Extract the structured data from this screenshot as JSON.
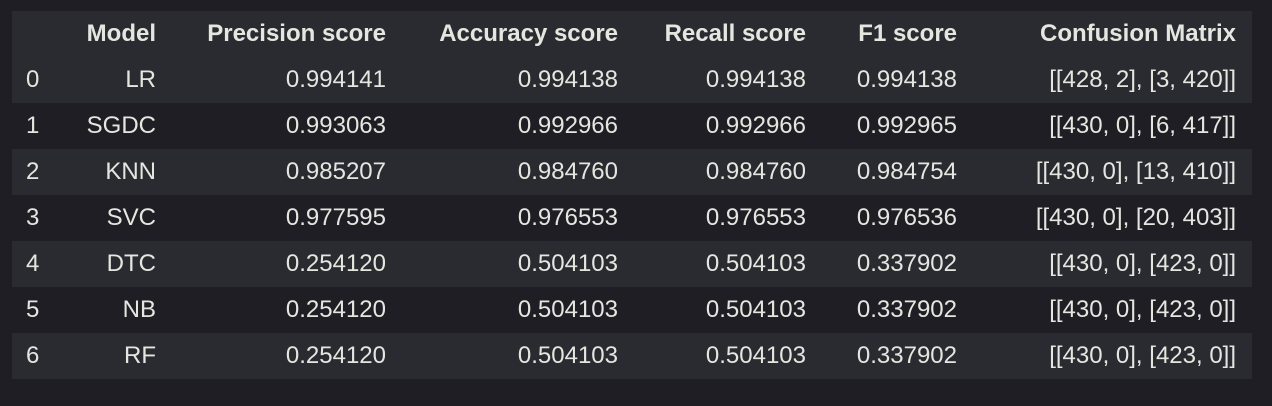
{
  "table": {
    "columns": [
      "",
      "Model",
      "Precision score",
      "Accuracy score",
      "Recall score",
      "F1 score",
      "Confusion Matrix"
    ],
    "rows": [
      [
        "0",
        "LR",
        "0.994141",
        "0.994138",
        "0.994138",
        "0.994138",
        "[[428, 2], [3, 420]]"
      ],
      [
        "1",
        "SGDC",
        "0.993063",
        "0.992966",
        "0.992966",
        "0.992965",
        "[[430, 0], [6, 417]]"
      ],
      [
        "2",
        "KNN",
        "0.985207",
        "0.984760",
        "0.984760",
        "0.984754",
        "[[430, 0], [13, 410]]"
      ],
      [
        "3",
        "SVC",
        "0.977595",
        "0.976553",
        "0.976553",
        "0.976536",
        "[[430, 0], [20, 403]]"
      ],
      [
        "4",
        "DTC",
        "0.254120",
        "0.504103",
        "0.504103",
        "0.337902",
        "[[430, 0], [423, 0]]"
      ],
      [
        "5",
        "NB",
        "0.254120",
        "0.504103",
        "0.504103",
        "0.337902",
        "[[430, 0], [423, 0]]"
      ],
      [
        "6",
        "RF",
        "0.254120",
        "0.504103",
        "0.504103",
        "0.337902",
        "[[430, 0], [423, 0]]"
      ]
    ]
  }
}
